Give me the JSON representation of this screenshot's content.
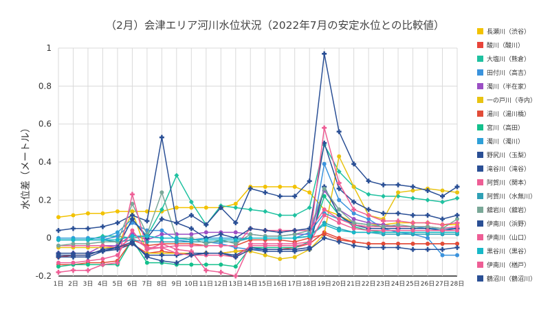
{
  "chart_data": {
    "type": "line",
    "title": "（2月）会津エリア河川水位状況（2022年7月の安定水位との比較値）",
    "xlabel": "",
    "ylabel": "水位差（メートル）",
    "ylim": [
      -0.2,
      1
    ],
    "yticks": [
      "1",
      "0.8",
      "0.6",
      "0.4",
      "0.2",
      "0",
      "-0.2"
    ],
    "grid": true,
    "legend_position": "right",
    "categories": [
      "1日",
      "2日",
      "3日",
      "4日",
      "5日",
      "6日",
      "7日",
      "8日",
      "9日",
      "10日",
      "11日",
      "12日",
      "13日",
      "14日",
      "15日",
      "16日",
      "17日",
      "18日",
      "19日",
      "20日",
      "21日",
      "22日",
      "23日",
      "24日",
      "25日",
      "26日",
      "27日",
      "28日"
    ],
    "series": [
      {
        "name": "長瀬川（渋谷）",
        "color": "#f2c200",
        "marker": "circle",
        "values": [
          0.11,
          0.12,
          0.13,
          0.13,
          0.14,
          0.14,
          0.14,
          0.14,
          0.16,
          0.16,
          0.16,
          0.16,
          0.18,
          0.27,
          0.27,
          0.27,
          0.27,
          0.24,
          0.15,
          0.12,
          0.08,
          0.07,
          0.07,
          0.08,
          0.08,
          0.08,
          0.07,
          0.07
        ]
      },
      {
        "name": "酸川（酸川）",
        "color": "#e8443a",
        "marker": "circle",
        "values": [
          -0.1,
          -0.09,
          -0.09,
          -0.06,
          -0.05,
          -0.03,
          -0.08,
          -0.07,
          -0.08,
          -0.08,
          -0.08,
          -0.08,
          -0.07,
          -0.06,
          -0.06,
          -0.06,
          -0.05,
          -0.03,
          0.03,
          0.0,
          -0.02,
          -0.03,
          -0.03,
          -0.03,
          -0.03,
          -0.03,
          -0.03,
          -0.03
        ]
      },
      {
        "name": "大塩川（熊倉）",
        "color": "#1fc1a0",
        "marker": "diamond",
        "values": [
          -0.01,
          -0.01,
          -0.01,
          0.01,
          0.01,
          0.0,
          0.01,
          0.15,
          0.33,
          0.19,
          0.07,
          0.17,
          0.16,
          0.15,
          0.14,
          0.12,
          0.12,
          0.16,
          0.49,
          0.35,
          0.27,
          0.23,
          0.22,
          0.22,
          0.21,
          0.2,
          0.19,
          0.21
        ]
      },
      {
        "name": "田付川（高吉）",
        "color": "#3b93dd",
        "marker": "circle",
        "values": [
          -0.01,
          -0.01,
          -0.01,
          -0.01,
          0.01,
          0.08,
          0.04,
          0.04,
          -0.01,
          -0.02,
          -0.02,
          -0.03,
          -0.05,
          -0.06,
          -0.06,
          -0.06,
          -0.06,
          -0.05,
          0.39,
          0.2,
          0.13,
          0.1,
          0.05,
          0.03,
          0.02,
          0.0,
          -0.09,
          -0.09
        ]
      },
      {
        "name": "濁川（半在家）",
        "color": "#9b4fc4",
        "marker": "circle",
        "values": [
          -0.08,
          -0.08,
          -0.08,
          -0.04,
          -0.04,
          0.02,
          -0.01,
          0.02,
          0.02,
          0.02,
          0.03,
          0.03,
          0.03,
          0.02,
          0.01,
          0.01,
          0.02,
          0.02,
          0.25,
          0.15,
          0.1,
          0.08,
          0.07,
          0.06,
          0.06,
          0.06,
          0.05,
          0.06
        ]
      },
      {
        "name": "一の戸川（寺内）",
        "color": "#e8c312",
        "marker": "circle",
        "values": [
          -0.05,
          -0.05,
          -0.05,
          -0.05,
          -0.05,
          0.14,
          -0.08,
          -0.08,
          -0.08,
          -0.08,
          -0.08,
          -0.08,
          -0.07,
          -0.07,
          -0.09,
          -0.11,
          -0.1,
          -0.06,
          0.02,
          0.43,
          0.27,
          0.12,
          0.1,
          0.24,
          0.25,
          0.26,
          0.25,
          0.24
        ]
      },
      {
        "name": "湯川（湯川橋）",
        "color": "#e24c38",
        "marker": "circle",
        "values": [
          -0.14,
          -0.14,
          -0.13,
          -0.13,
          -0.12,
          -0.01,
          -0.04,
          -0.03,
          -0.03,
          -0.03,
          -0.04,
          -0.04,
          -0.04,
          -0.01,
          -0.01,
          -0.01,
          -0.02,
          0.0,
          0.02,
          -0.01,
          -0.02,
          -0.03,
          -0.03,
          -0.03,
          -0.03,
          -0.03,
          -0.03,
          -0.03
        ]
      },
      {
        "name": "宮川（高田）",
        "color": "#14c08c",
        "marker": "circle",
        "values": [
          -0.15,
          -0.14,
          -0.14,
          -0.14,
          -0.14,
          -0.01,
          -0.13,
          -0.13,
          -0.14,
          -0.14,
          -0.14,
          -0.14,
          -0.15,
          -0.05,
          -0.05,
          -0.05,
          -0.05,
          -0.02,
          0.22,
          0.12,
          0.06,
          0.04,
          0.03,
          0.03,
          0.03,
          0.03,
          0.03,
          0.03
        ]
      },
      {
        "name": "濁川（濁川）",
        "color": "#2fa0d8",
        "marker": "circle",
        "values": [
          0.0,
          0.0,
          0.0,
          0.0,
          0.03,
          0.1,
          0.01,
          0.0,
          0.0,
          -0.01,
          0.0,
          0.0,
          0.0,
          0.0,
          0.0,
          0.0,
          0.0,
          0.03,
          0.13,
          0.1,
          0.08,
          0.07,
          0.06,
          0.06,
          0.06,
          0.05,
          0.05,
          0.05
        ]
      },
      {
        "name": "野尻川（玉梨）",
        "color": "#2a4f95",
        "marker": "plus",
        "values": [
          0.04,
          0.05,
          0.05,
          0.06,
          0.08,
          0.12,
          0.09,
          0.53,
          0.08,
          0.12,
          0.07,
          0.16,
          0.08,
          0.26,
          0.24,
          0.22,
          0.22,
          0.3,
          0.97,
          0.56,
          0.39,
          0.3,
          0.28,
          0.28,
          0.27,
          0.25,
          0.22,
          0.27
        ]
      },
      {
        "name": "滝谷川（滝谷）",
        "color": "#2a4f95",
        "marker": "plus",
        "values": [
          -0.08,
          -0.08,
          -0.08,
          -0.07,
          -0.06,
          -0.03,
          -0.09,
          -0.09,
          -0.09,
          -0.08,
          -0.08,
          -0.08,
          -0.09,
          -0.05,
          -0.06,
          -0.06,
          -0.06,
          -0.05,
          0.27,
          0.12,
          0.07,
          0.05,
          0.05,
          0.05,
          0.05,
          0.05,
          0.04,
          0.05
        ]
      },
      {
        "name": "阿賀川（関本）",
        "color": "#ee5e95",
        "marker": "circle",
        "values": [
          -0.04,
          -0.04,
          -0.04,
          -0.04,
          -0.05,
          0.0,
          -0.05,
          -0.05,
          -0.04,
          -0.04,
          -0.04,
          -0.04,
          -0.04,
          0.05,
          0.04,
          0.04,
          0.04,
          0.04,
          0.15,
          0.1,
          0.07,
          0.06,
          0.06,
          0.06,
          0.06,
          0.06,
          0.05,
          0.06
        ]
      },
      {
        "name": "阿賀川（水無川）",
        "color": "#2fa0b5",
        "marker": "circle",
        "values": [
          -0.01,
          -0.01,
          -0.01,
          -0.01,
          -0.02,
          -0.01,
          -0.02,
          -0.02,
          -0.02,
          -0.02,
          -0.02,
          -0.02,
          -0.02,
          0.0,
          0.0,
          0.0,
          0.0,
          0.01,
          0.08,
          0.05,
          0.03,
          0.03,
          0.02,
          0.02,
          0.02,
          0.02,
          0.02,
          0.02
        ]
      },
      {
        "name": "舘岩川（舘岩）",
        "color": "#7aa898",
        "marker": "circle",
        "values": [
          -0.04,
          -0.03,
          -0.03,
          -0.02,
          -0.02,
          0.18,
          0.02,
          0.24,
          0.0,
          0.0,
          -0.03,
          -0.01,
          -0.03,
          0.02,
          0.01,
          0.01,
          0.02,
          0.04,
          0.26,
          0.15,
          0.08,
          0.07,
          0.06,
          0.07,
          0.06,
          0.06,
          0.05,
          0.1
        ]
      },
      {
        "name": "伊南川（浜野）",
        "color": "#2a4f95",
        "marker": "plus",
        "values": [
          -0.09,
          -0.09,
          -0.09,
          -0.06,
          -0.05,
          0.1,
          0.0,
          0.1,
          0.08,
          0.05,
          0.0,
          0.02,
          0.0,
          0.05,
          0.04,
          0.03,
          0.04,
          0.05,
          0.5,
          0.26,
          0.19,
          0.15,
          0.13,
          0.13,
          0.12,
          0.12,
          0.1,
          0.12
        ]
      },
      {
        "name": "伊南川（山口）",
        "color": "#ee5e95",
        "marker": "plus",
        "values": [
          -0.18,
          -0.17,
          -0.17,
          -0.14,
          -0.13,
          0.23,
          -0.06,
          -0.03,
          -0.06,
          -0.07,
          -0.17,
          -0.18,
          -0.2,
          -0.03,
          -0.03,
          -0.03,
          -0.03,
          -0.02,
          0.58,
          0.29,
          0.15,
          0.12,
          0.09,
          0.09,
          0.08,
          0.08,
          0.07,
          0.08
        ]
      },
      {
        "name": "黒谷川（黒谷）",
        "color": "#18b8c8",
        "marker": "circle",
        "values": [
          -0.01,
          -0.01,
          -0.01,
          -0.01,
          -0.01,
          0.01,
          0.01,
          0.0,
          0.0,
          -0.01,
          -0.01,
          -0.01,
          -0.01,
          0.0,
          0.0,
          0.0,
          0.0,
          0.01,
          0.07,
          0.04,
          0.03,
          0.03,
          0.03,
          0.03,
          0.03,
          0.03,
          0.03,
          0.03
        ]
      },
      {
        "name": "伊南川（楢戸）",
        "color": "#ee5e95",
        "marker": "circle",
        "values": [
          -0.13,
          -0.13,
          -0.12,
          -0.11,
          -0.09,
          0.04,
          -0.06,
          -0.05,
          -0.08,
          -0.09,
          -0.09,
          -0.09,
          -0.1,
          -0.04,
          -0.04,
          -0.04,
          -0.04,
          -0.03,
          0.12,
          0.08,
          0.05,
          0.04,
          0.04,
          0.04,
          0.04,
          0.04,
          0.04,
          0.04
        ]
      },
      {
        "name": "鶴沼川（鶴沼川）",
        "color": "#2a4f95",
        "marker": "plus",
        "values": [
          -0.1,
          -0.1,
          -0.1,
          -0.07,
          -0.05,
          -0.02,
          -0.1,
          -0.12,
          -0.13,
          -0.09,
          -0.08,
          -0.08,
          -0.1,
          -0.06,
          -0.07,
          -0.07,
          -0.07,
          -0.06,
          0.0,
          -0.02,
          -0.04,
          -0.05,
          -0.05,
          -0.05,
          -0.06,
          -0.06,
          -0.06,
          -0.05
        ]
      }
    ]
  }
}
